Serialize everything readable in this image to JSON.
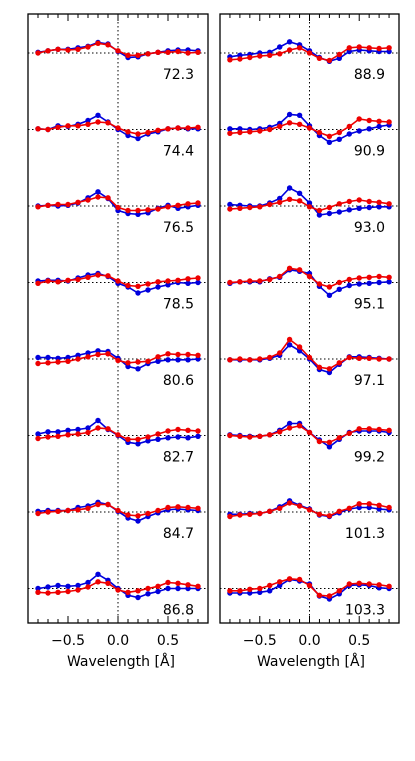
{
  "figure": {
    "xlabel": "Wavelength [Å]",
    "x_ticks": [
      "−0.5",
      "0.0",
      "0.5"
    ],
    "x_tick_values": [
      -0.5,
      0.0,
      0.5
    ]
  },
  "chart_data": [
    {
      "type": "line",
      "panel": "left",
      "xlabel": "Wavelength [Å]",
      "xlim": [
        -0.9,
        0.9
      ],
      "x": [
        -0.8,
        -0.7,
        -0.6,
        -0.5,
        -0.4,
        -0.3,
        -0.2,
        -0.1,
        0.0,
        0.1,
        0.2,
        0.3,
        0.4,
        0.5,
        0.6,
        0.7,
        0.8
      ],
      "colors": {
        "blue": "#0000dd",
        "red": "#ee0000"
      },
      "rows": [
        {
          "label": "72.3",
          "blue": [
            0.1,
            0.3,
            0.5,
            0.5,
            0.7,
            0.9,
            1.4,
            1.2,
            0.2,
            -0.6,
            -0.5,
            -0.1,
            0.1,
            0.3,
            0.4,
            0.4,
            0.3
          ],
          "red": [
            0.0,
            0.3,
            0.5,
            0.4,
            0.5,
            0.8,
            1.3,
            1.1,
            0.3,
            -0.3,
            -0.3,
            -0.1,
            0.1,
            0.1,
            0.2,
            0.0,
            0.1
          ]
        },
        {
          "label": "74.4",
          "blue": [
            0.1,
            0.0,
            0.5,
            0.4,
            0.7,
            1.2,
            1.9,
            1.0,
            0.0,
            -0.8,
            -1.2,
            -0.6,
            -0.3,
            0.1,
            0.2,
            0.1,
            0.1
          ],
          "red": [
            0.1,
            0.0,
            0.3,
            0.5,
            0.5,
            0.7,
            1.0,
            0.9,
            0.2,
            -0.3,
            -0.6,
            -0.4,
            -0.1,
            0.1,
            0.2,
            0.2,
            0.3
          ]
        },
        {
          "label": "76.5",
          "blue": [
            0.0,
            0.1,
            0.0,
            0.1,
            0.4,
            1.1,
            1.9,
            1.0,
            -0.6,
            -1.0,
            -1.1,
            -0.9,
            -0.3,
            0.1,
            -0.3,
            -0.1,
            0.1
          ],
          "red": [
            -0.1,
            0.1,
            0.2,
            0.2,
            0.5,
            0.8,
            1.2,
            1.1,
            -0.2,
            -0.6,
            -0.6,
            -0.5,
            -0.4,
            -0.1,
            0.1,
            0.3,
            0.4
          ]
        },
        {
          "label": "78.5",
          "blue": [
            0.2,
            0.3,
            0.3,
            0.2,
            0.6,
            1.0,
            1.2,
            0.8,
            -0.1,
            -0.6,
            -1.4,
            -1.0,
            -0.6,
            -0.3,
            0.0,
            -0.1,
            0.0
          ],
          "red": [
            -0.1,
            0.2,
            0.1,
            0.3,
            0.4,
            0.7,
            1.0,
            0.9,
            0.2,
            -0.4,
            -0.5,
            -0.2,
            0.1,
            0.2,
            0.3,
            0.5,
            0.6
          ]
        },
        {
          "label": "80.6",
          "blue": [
            0.2,
            0.2,
            0.1,
            0.2,
            0.5,
            0.8,
            1.1,
            1.0,
            0.1,
            -1.0,
            -1.3,
            -0.6,
            -0.3,
            -0.1,
            -0.1,
            -0.1,
            0.0
          ],
          "red": [
            -0.6,
            -0.5,
            -0.4,
            -0.3,
            0.0,
            0.3,
            0.6,
            0.7,
            -0.2,
            -0.5,
            -0.4,
            -0.3,
            0.3,
            0.7,
            0.6,
            0.6,
            0.5
          ]
        },
        {
          "label": "82.7",
          "blue": [
            0.2,
            0.5,
            0.5,
            0.7,
            0.8,
            1.0,
            2.0,
            0.8,
            0.0,
            -0.9,
            -1.1,
            -0.7,
            -0.5,
            -0.3,
            -0.2,
            -0.3,
            -0.1
          ],
          "red": [
            -0.4,
            -0.2,
            -0.1,
            0.1,
            0.2,
            0.4,
            1.0,
            0.9,
            0.1,
            -0.5,
            -0.5,
            -0.2,
            0.2,
            0.6,
            0.8,
            0.7,
            0.6
          ]
        },
        {
          "label": "84.7",
          "blue": [
            0.1,
            0.2,
            0.2,
            0.2,
            0.6,
            0.8,
            1.3,
            1.0,
            0.1,
            -0.8,
            -1.2,
            -0.6,
            -0.1,
            0.3,
            0.4,
            0.3,
            0.2
          ],
          "red": [
            -0.2,
            0.0,
            0.1,
            0.2,
            0.3,
            0.5,
            1.0,
            1.0,
            0.2,
            -0.4,
            -0.5,
            -0.2,
            0.2,
            0.6,
            0.7,
            0.6,
            0.5
          ]
        },
        {
          "label": "86.8",
          "blue": [
            0.0,
            0.2,
            0.4,
            0.3,
            0.4,
            0.8,
            1.9,
            1.1,
            0.0,
            -0.9,
            -1.2,
            -0.7,
            -0.4,
            0.0,
            0.0,
            0.0,
            0.0
          ],
          "red": [
            -0.5,
            -0.6,
            -0.5,
            -0.4,
            -0.2,
            0.2,
            0.9,
            0.7,
            -0.2,
            -0.5,
            -0.3,
            0.0,
            0.3,
            0.8,
            0.7,
            0.5,
            0.3
          ]
        }
      ]
    },
    {
      "type": "line",
      "panel": "right",
      "xlabel": "Wavelength [Å]",
      "xlim": [
        -0.9,
        0.9
      ],
      "x": [
        -0.8,
        -0.7,
        -0.6,
        -0.5,
        -0.4,
        -0.3,
        -0.2,
        -0.1,
        0.0,
        0.1,
        0.2,
        0.3,
        0.4,
        0.5,
        0.6,
        0.7,
        0.8
      ],
      "colors": {
        "blue": "#0000dd",
        "red": "#ee0000"
      },
      "rows": [
        {
          "label": "88.9",
          "blue": [
            -0.5,
            -0.3,
            -0.2,
            0.0,
            0.1,
            0.8,
            1.5,
            1.1,
            0.3,
            -0.6,
            -1.1,
            -0.7,
            0.2,
            0.4,
            0.3,
            0.2,
            0.2
          ],
          "red": [
            -0.9,
            -0.8,
            -0.6,
            -0.4,
            -0.3,
            -0.1,
            0.4,
            0.7,
            0.0,
            -0.7,
            -1.0,
            -0.2,
            0.7,
            0.8,
            0.7,
            0.6,
            0.7
          ]
        },
        {
          "label": "90.9",
          "blue": [
            0.1,
            0.1,
            0.0,
            0.1,
            0.3,
            0.8,
            2.0,
            1.9,
            0.5,
            -0.8,
            -1.7,
            -1.3,
            -0.6,
            -0.2,
            0.1,
            0.4,
            0.6
          ],
          "red": [
            -0.5,
            -0.4,
            -0.3,
            -0.2,
            0.0,
            0.4,
            0.9,
            0.7,
            0.2,
            -0.4,
            -0.9,
            -0.4,
            0.4,
            1.4,
            1.2,
            1.1,
            1.0
          ]
        },
        {
          "label": "93.0",
          "blue": [
            0.2,
            0.1,
            0.0,
            0.0,
            0.4,
            1.0,
            2.4,
            1.7,
            0.4,
            -1.2,
            -1.0,
            -0.8,
            -0.5,
            -0.3,
            -0.2,
            -0.1,
            -0.1
          ],
          "red": [
            -0.4,
            -0.3,
            -0.2,
            -0.1,
            0.2,
            0.5,
            0.9,
            0.7,
            -0.1,
            -0.6,
            -0.2,
            0.3,
            0.6,
            0.8,
            0.6,
            0.5,
            0.3
          ]
        },
        {
          "label": "95.1",
          "blue": [
            -0.1,
            0.1,
            0.1,
            0.1,
            0.5,
            0.7,
            1.7,
            1.5,
            1.2,
            -0.5,
            -1.7,
            -0.9,
            -0.4,
            -0.2,
            -0.1,
            0.0,
            0.1
          ],
          "red": [
            0.0,
            0.1,
            0.2,
            0.2,
            0.4,
            0.8,
            1.9,
            1.7,
            0.8,
            -0.2,
            -0.6,
            0.0,
            0.4,
            0.6,
            0.7,
            0.8,
            0.7
          ]
        },
        {
          "label": "97.1",
          "blue": [
            -0.1,
            -0.1,
            -0.1,
            -0.1,
            0.1,
            0.5,
            1.9,
            1.1,
            0.0,
            -1.4,
            -1.8,
            -0.7,
            0.3,
            0.3,
            0.2,
            0.1,
            0.0
          ],
          "red": [
            -0.1,
            0.0,
            -0.1,
            0.0,
            0.2,
            0.8,
            2.6,
            1.6,
            0.2,
            -1.1,
            -1.3,
            -0.5,
            0.2,
            0.1,
            0.1,
            0.0,
            0.0
          ]
        },
        {
          "label": "99.2",
          "blue": [
            0.1,
            0.0,
            -0.1,
            -0.1,
            0.1,
            0.7,
            1.6,
            1.6,
            0.4,
            -0.6,
            -1.5,
            -0.5,
            0.4,
            0.6,
            0.6,
            0.6,
            0.4
          ],
          "red": [
            0.0,
            -0.1,
            -0.2,
            -0.1,
            0.1,
            0.5,
            1.0,
            1.3,
            0.4,
            -0.8,
            -0.9,
            -0.3,
            0.3,
            0.9,
            0.9,
            0.8,
            0.7
          ]
        },
        {
          "label": "101.3",
          "blue": [
            -0.3,
            -0.3,
            -0.2,
            -0.2,
            0.1,
            0.7,
            1.5,
            0.9,
            0.4,
            -0.4,
            -0.6,
            -0.1,
            0.4,
            0.6,
            0.6,
            0.4,
            0.3
          ],
          "red": [
            -0.6,
            -0.4,
            -0.3,
            -0.2,
            0.1,
            0.5,
            1.2,
            0.8,
            0.3,
            -0.3,
            -0.5,
            0.1,
            0.5,
            1.1,
            1.1,
            0.9,
            0.6
          ]
        },
        {
          "label": "103.3",
          "blue": [
            -0.6,
            -0.6,
            -0.6,
            -0.5,
            -0.3,
            0.4,
            1.2,
            1.0,
            0.6,
            -1.0,
            -1.4,
            -0.7,
            0.4,
            0.5,
            0.4,
            0.1,
            0.0
          ],
          "red": [
            -0.3,
            -0.3,
            -0.1,
            0.0,
            0.4,
            0.9,
            1.3,
            1.2,
            0.4,
            -0.9,
            -1.0,
            -0.3,
            0.6,
            0.7,
            0.6,
            0.5,
            0.3
          ]
        }
      ]
    }
  ]
}
